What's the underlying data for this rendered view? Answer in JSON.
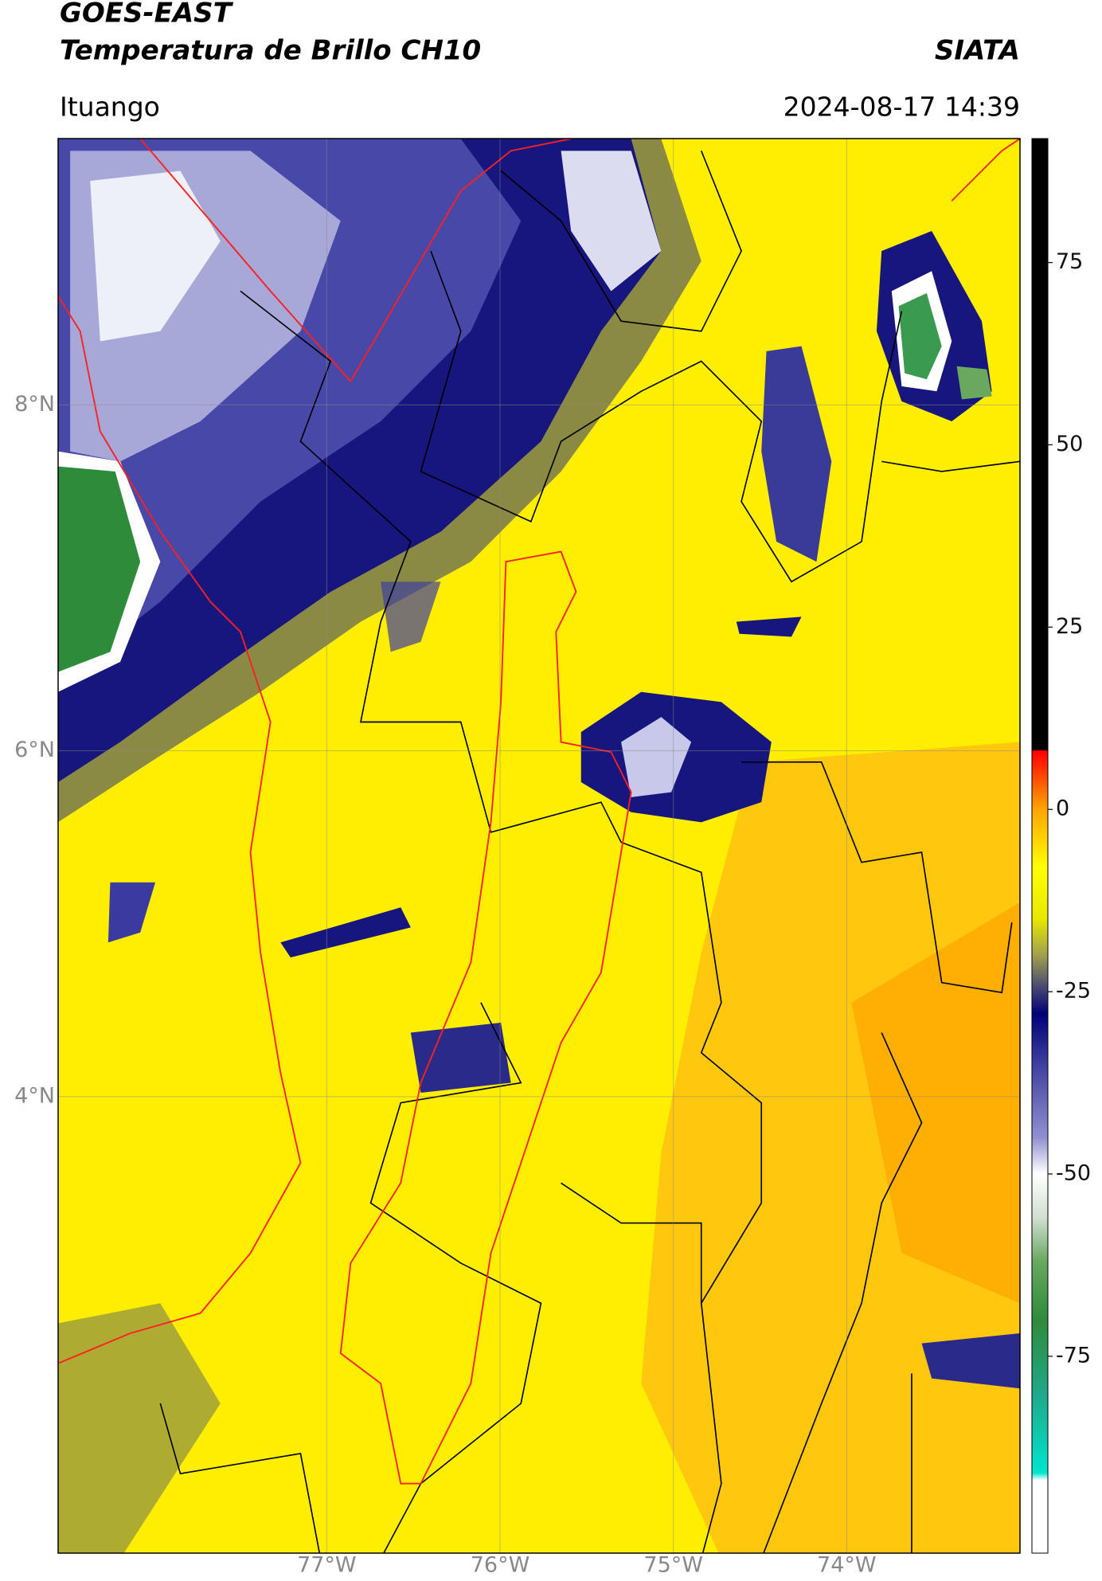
{
  "chart_data": {
    "type": "map",
    "title": "GOES-EAST",
    "subtitle": "Temperatura de Brillo CH10",
    "source": "SIATA",
    "location": "Ituango",
    "datetime": "2024-08-17 14:39",
    "xlim": [
      -78.55,
      -73.0
    ],
    "ylim": [
      1.36,
      9.54
    ],
    "xticks": [
      {
        "value": -77,
        "label": "77°W"
      },
      {
        "value": -76,
        "label": "76°W"
      },
      {
        "value": -75,
        "label": "75°W"
      },
      {
        "value": -74,
        "label": "74°W"
      }
    ],
    "yticks": [
      {
        "value": 8,
        "label": "8°N"
      },
      {
        "value": 6,
        "label": "6°N"
      },
      {
        "value": 4,
        "label": "4°N"
      }
    ],
    "grid": true,
    "clim": [
      -102,
      92
    ],
    "cticks": [
      75,
      50,
      25,
      0,
      -25,
      -50,
      -75
    ],
    "colorscale": [
      {
        "value": -102,
        "color": "#ffffff"
      },
      {
        "value": -92,
        "color": "#ffffff"
      },
      {
        "value": -91,
        "color": "#00e5d0"
      },
      {
        "value": -80,
        "color": "#20a888"
      },
      {
        "value": -70,
        "color": "#2e8b3a"
      },
      {
        "value": -62,
        "color": "#6aa860"
      },
      {
        "value": -56,
        "color": "#d0e0d0"
      },
      {
        "value": -50,
        "color": "#ffffff"
      },
      {
        "value": -45,
        "color": "#9090d0"
      },
      {
        "value": -35,
        "color": "#4040a0"
      },
      {
        "value": -28,
        "color": "#00007a"
      },
      {
        "value": -24,
        "color": "#505070"
      },
      {
        "value": -20,
        "color": "#a0a050"
      },
      {
        "value": -15,
        "color": "#e8e800"
      },
      {
        "value": -8,
        "color": "#ffff00"
      },
      {
        "value": 0,
        "color": "#ffa500"
      },
      {
        "value": 8,
        "color": "#ff0000"
      },
      {
        "value": 8.2,
        "color": "#000000"
      },
      {
        "value": 92,
        "color": "#000000"
      }
    ]
  }
}
